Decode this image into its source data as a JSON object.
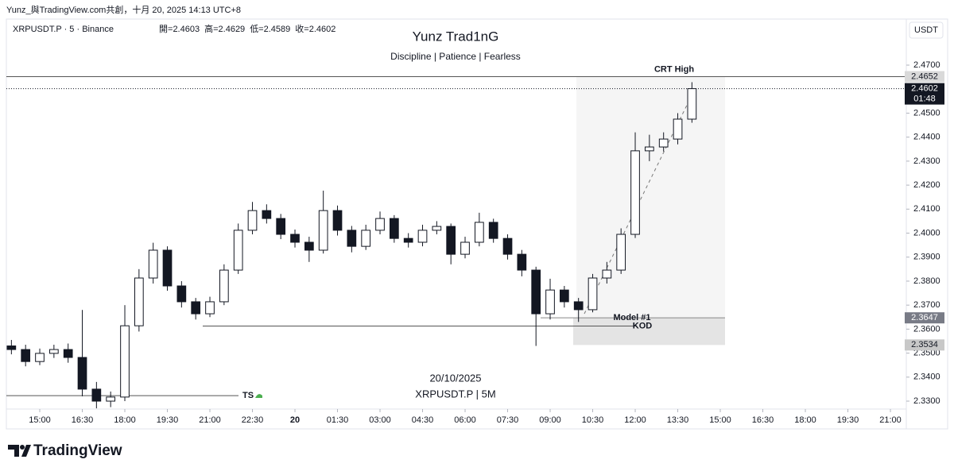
{
  "header": "Yunz_與TradingView.com共創，十月 20, 2025 14:13 UTC+8",
  "branding": "TradingView",
  "chart_data": {
    "type": "candlestick",
    "title": "Yunz Trad1nG",
    "subtitle": "Discipline | Patience | Fearless",
    "symbol_info": "XRPUSDT.P · 5 · Binance",
    "ohlc_legend": [
      {
        "label": "開=",
        "value": 2.4603
      },
      {
        "label": "高=",
        "value": 2.4629
      },
      {
        "label": "低=",
        "value": 2.4589
      },
      {
        "label": "收=",
        "value": 2.4602
      }
    ],
    "currency": "USDT",
    "watermark_date": "20/10/2025",
    "watermark_symbol": "XRPUSDT.P | 5M",
    "x": [
      -1,
      -0.5,
      0,
      0.5,
      1,
      1.5,
      2,
      2.5,
      3,
      3.5,
      4,
      4.5,
      5,
      5.5,
      6,
      6.5,
      7,
      7.5,
      8,
      8.5,
      9,
      9.5,
      10,
      10.5,
      11,
      11.5,
      12,
      12.5,
      13,
      13.5,
      14,
      14.5,
      15,
      15.5,
      16,
      16.5,
      17,
      17.5,
      18,
      18.5,
      19,
      19.5,
      20,
      20.5,
      21,
      21.5,
      22,
      22.5,
      23
    ],
    "open": [
      2.353,
      2.3515,
      2.3465,
      2.3499,
      2.3515,
      2.3482,
      2.335,
      2.33,
      2.3317,
      2.3614,
      2.3813,
      2.3929,
      2.378,
      2.3714,
      2.3664,
      2.3714,
      2.3846,
      2.4012,
      2.4094,
      2.4061,
      2.3995,
      2.3962,
      2.3929,
      2.4094,
      2.4012,
      2.3945,
      2.4012,
      2.4061,
      2.3978,
      2.3962,
      2.4012,
      2.4028,
      2.3912,
      2.3962,
      2.4045,
      2.3978,
      2.3912,
      2.3846,
      2.3664,
      2.3763,
      2.3714,
      2.3681,
      2.3813,
      2.3846,
      2.3995,
      2.4343,
      2.4359,
      2.4392,
      2.4475
    ],
    "high": [
      2.3555,
      2.3535,
      2.3519,
      2.3535,
      2.354,
      2.368,
      2.338,
      2.334,
      2.37,
      2.385,
      2.396,
      2.3945,
      2.38,
      2.373,
      2.3735,
      2.387,
      2.404,
      2.413,
      2.412,
      2.408,
      2.4015,
      2.3985,
      2.4177,
      2.4115,
      2.403,
      2.4035,
      2.409,
      2.4075,
      2.4,
      2.4035,
      2.405,
      2.404,
      2.3985,
      2.4085,
      2.406,
      2.3995,
      2.393,
      2.386,
      2.381,
      2.378,
      2.373,
      2.383,
      2.388,
      2.402,
      2.442,
      2.441,
      2.442,
      2.45,
      2.4629
    ],
    "low": [
      2.3495,
      2.3445,
      2.345,
      2.348,
      2.346,
      2.332,
      2.327,
      2.3275,
      2.33,
      2.359,
      2.379,
      2.376,
      2.369,
      2.364,
      2.365,
      2.37,
      2.383,
      2.3995,
      2.404,
      2.3975,
      2.394,
      2.388,
      2.3915,
      2.399,
      2.392,
      2.393,
      2.3995,
      2.396,
      2.394,
      2.3945,
      2.3995,
      2.387,
      2.3895,
      2.3945,
      2.396,
      2.389,
      2.382,
      2.353,
      2.364,
      2.369,
      2.363,
      2.367,
      2.379,
      2.383,
      2.398,
      2.43,
      2.434,
      2.437,
      2.446
    ],
    "close": [
      2.3515,
      2.3465,
      2.3499,
      2.3515,
      2.3482,
      2.335,
      2.33,
      2.3317,
      2.3614,
      2.3813,
      2.3929,
      2.378,
      2.3714,
      2.3664,
      2.3714,
      2.3846,
      2.4012,
      2.4094,
      2.4061,
      2.3995,
      2.3962,
      2.3929,
      2.4094,
      2.4012,
      2.3945,
      2.4012,
      2.4061,
      2.3978,
      2.3962,
      2.4012,
      2.4028,
      2.3912,
      2.3962,
      2.4045,
      2.3978,
      2.3912,
      2.3846,
      2.3664,
      2.3763,
      2.3714,
      2.3681,
      2.3813,
      2.3846,
      2.3995,
      2.4343,
      2.4359,
      2.4392,
      2.4475,
      2.4602
    ],
    "up_color": "#ffffff",
    "down_color": "#131722",
    "xlim": [
      -1.178,
      30.56
    ],
    "xticks": [
      {
        "value": 0,
        "label": "15:00"
      },
      {
        "value": 1.5,
        "label": "16:30"
      },
      {
        "value": 3,
        "label": "18:00"
      },
      {
        "value": 4.5,
        "label": "19:30"
      },
      {
        "value": 6,
        "label": "21:00"
      },
      {
        "value": 7.5,
        "label": "22:30"
      },
      {
        "value": 9,
        "label": "20"
      },
      {
        "value": 10.5,
        "label": "01:30"
      },
      {
        "value": 12,
        "label": "03:00"
      },
      {
        "value": 13.5,
        "label": "04:30"
      },
      {
        "value": 15,
        "label": "06:00"
      },
      {
        "value": 16.5,
        "label": "07:30"
      },
      {
        "value": 18,
        "label": "09:00"
      },
      {
        "value": 19.5,
        "label": "10:30"
      },
      {
        "value": 21,
        "label": "12:00"
      },
      {
        "value": 22.5,
        "label": "13:30"
      },
      {
        "value": 24,
        "label": "15:00"
      },
      {
        "value": 25.5,
        "label": "16:30"
      },
      {
        "value": 27,
        "label": "18:00"
      },
      {
        "value": 28.5,
        "label": "19:30"
      },
      {
        "value": 30,
        "label": "21:00"
      }
    ],
    "ylim": [
      2.3267,
      2.4892
    ],
    "yticks": [
      {
        "value": 2.33,
        "label": "2.3300"
      },
      {
        "value": 2.34,
        "label": "2.3400"
      },
      {
        "value": 2.35,
        "label": "2.3500"
      },
      {
        "value": 2.36,
        "label": "2.3600"
      },
      {
        "value": 2.37,
        "label": "2.3700"
      },
      {
        "value": 2.38,
        "label": "2.3800"
      },
      {
        "value": 2.39,
        "label": "2.3900"
      },
      {
        "value": 2.4,
        "label": "2.4000"
      },
      {
        "value": 2.41,
        "label": "2.4100"
      },
      {
        "value": 2.42,
        "label": "2.4200"
      },
      {
        "value": 2.43,
        "label": "2.4300"
      },
      {
        "value": 2.44,
        "label": "2.4400"
      },
      {
        "value": 2.45,
        "label": "2.4500"
      },
      {
        "value": 2.47,
        "label": "2.4700"
      }
    ],
    "grid": false,
    "levels": [
      {
        "label": "CRT High",
        "value": 2.4652
      },
      {
        "label": "Model #1",
        "value": 2.3647
      },
      {
        "label": "KOD",
        "value": 2.3613
      },
      {
        "label": "TS",
        "value": 2.3323
      }
    ],
    "zone_bottom": 2.3534,
    "last_price": 2.4602,
    "countdown": "01:48"
  }
}
